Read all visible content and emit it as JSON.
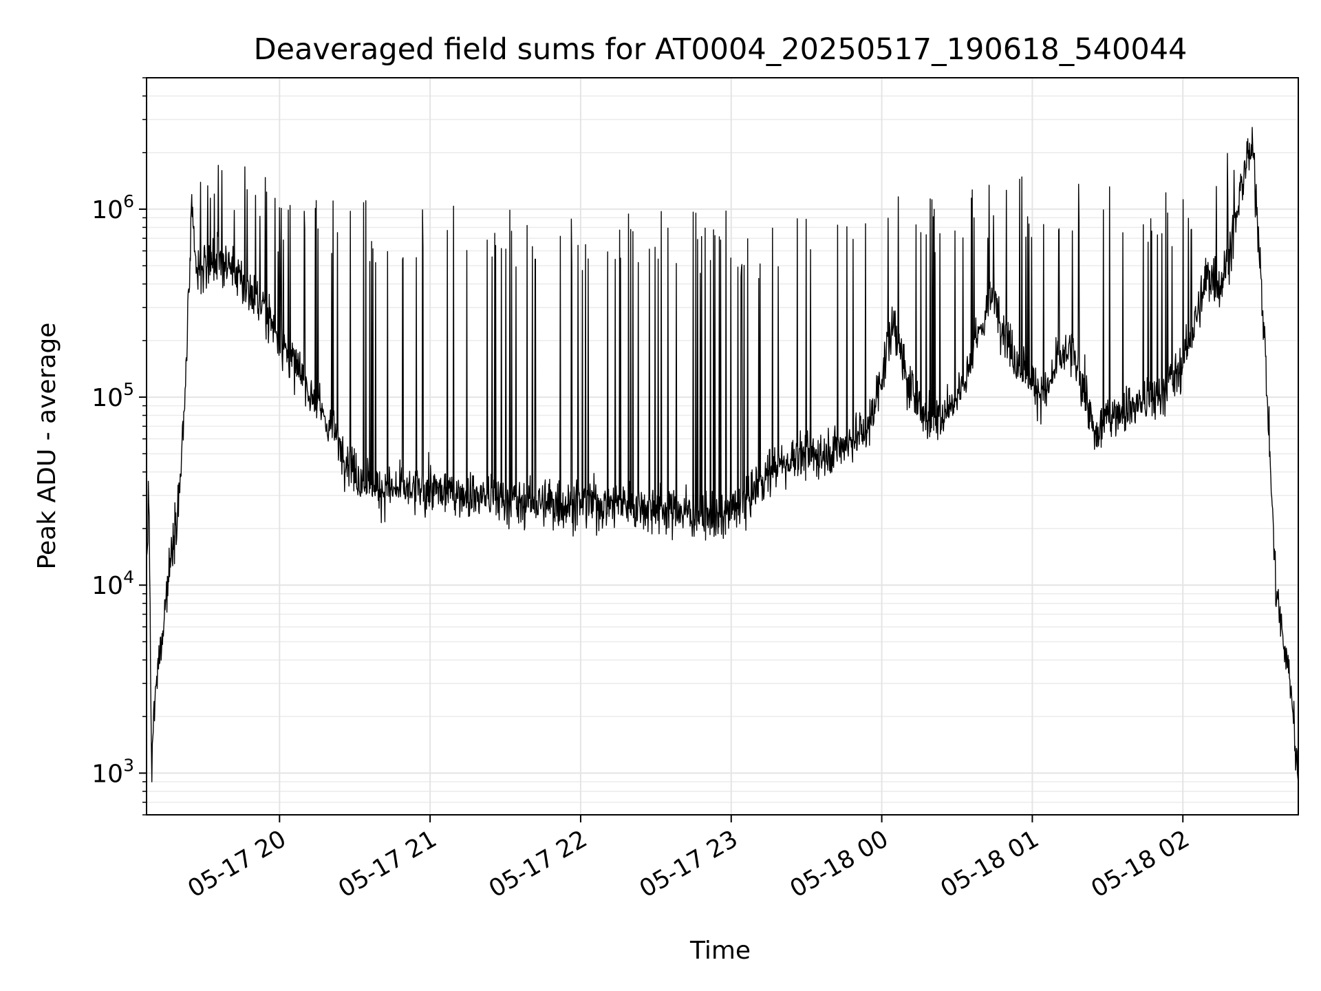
{
  "chart_data": {
    "type": "line",
    "title": "Deaveraged field sums for AT0004_20250517_190618_540044",
    "xlabel": "Time",
    "ylabel": "Peak ADU - average",
    "y_scale": "log",
    "ylim": [
      600,
      5000000
    ],
    "xlim": [
      "2025-05-17 19:07",
      "2025-05-18 02:46"
    ],
    "grid": true,
    "minor_grid": true,
    "legend": "none",
    "line_color": "#000000",
    "x_ticks": [
      {
        "value": "2025-05-17 20:00",
        "label": "05-17 20"
      },
      {
        "value": "2025-05-17 21:00",
        "label": "05-17 21"
      },
      {
        "value": "2025-05-17 22:00",
        "label": "05-17 22"
      },
      {
        "value": "2025-05-17 23:00",
        "label": "05-17 23"
      },
      {
        "value": "2025-05-18 00:00",
        "label": "05-18 00"
      },
      {
        "value": "2025-05-18 01:00",
        "label": "05-18 01"
      },
      {
        "value": "2025-05-18 02:00",
        "label": "05-18 02"
      }
    ],
    "y_ticks": [
      {
        "value": 1000,
        "base": "10",
        "exp": "3"
      },
      {
        "value": 10000,
        "base": "10",
        "exp": "4"
      },
      {
        "value": 100000,
        "base": "10",
        "exp": "5"
      },
      {
        "value": 1000000,
        "base": "10",
        "exp": "6"
      }
    ],
    "baseline_series": {
      "name": "",
      "points": [
        [
          "2025-05-17 19:07",
          13000
        ],
        [
          "2025-05-17 19:08",
          30000
        ],
        [
          "2025-05-17 19:09",
          900
        ],
        [
          "2025-05-17 19:10",
          2200
        ],
        [
          "2025-05-17 19:12",
          4000
        ],
        [
          "2025-05-17 19:14",
          7000
        ],
        [
          "2025-05-17 19:16",
          12000
        ],
        [
          "2025-05-17 19:18",
          20000
        ],
        [
          "2025-05-17 19:20",
          30000
        ],
        [
          "2025-05-17 19:22",
          80000
        ],
        [
          "2025-05-17 19:24",
          400000
        ],
        [
          "2025-05-17 19:25",
          900000
        ],
        [
          "2025-05-17 19:27",
          450000
        ],
        [
          "2025-05-17 19:30",
          500000
        ],
        [
          "2025-05-17 19:35",
          550000
        ],
        [
          "2025-05-17 19:40",
          500000
        ],
        [
          "2025-05-17 19:45",
          400000
        ],
        [
          "2025-05-17 19:50",
          350000
        ],
        [
          "2025-05-17 19:55",
          280000
        ],
        [
          "2025-05-17 20:00",
          200000
        ],
        [
          "2025-05-17 20:10",
          120000
        ],
        [
          "2025-05-17 20:20",
          70000
        ],
        [
          "2025-05-17 20:30",
          40000
        ],
        [
          "2025-05-17 20:40",
          32000
        ],
        [
          "2025-05-17 21:00",
          32000
        ],
        [
          "2025-05-17 21:20",
          30000
        ],
        [
          "2025-05-17 21:40",
          27000
        ],
        [
          "2025-05-17 22:00",
          27000
        ],
        [
          "2025-05-17 22:20",
          27000
        ],
        [
          "2025-05-17 22:40",
          25000
        ],
        [
          "2025-05-17 22:55",
          22000
        ],
        [
          "2025-05-17 23:05",
          28000
        ],
        [
          "2025-05-17 23:15",
          40000
        ],
        [
          "2025-05-17 23:25",
          48000
        ],
        [
          "2025-05-17 23:35",
          50000
        ],
        [
          "2025-05-17 23:45",
          55000
        ],
        [
          "2025-05-17 23:55",
          70000
        ],
        [
          "2025-05-18 00:05",
          250000
        ],
        [
          "2025-05-18 00:10",
          120000
        ],
        [
          "2025-05-18 00:20",
          70000
        ],
        [
          "2025-05-18 00:30",
          100000
        ],
        [
          "2025-05-18 00:35",
          150000
        ],
        [
          "2025-05-18 00:40",
          250000
        ],
        [
          "2025-05-18 00:45",
          350000
        ],
        [
          "2025-05-18 00:50",
          200000
        ],
        [
          "2025-05-18 00:55",
          150000
        ],
        [
          "2025-05-18 01:00",
          120000
        ],
        [
          "2025-05-18 01:05",
          100000
        ],
        [
          "2025-05-18 01:10",
          150000
        ],
        [
          "2025-05-18 01:15",
          180000
        ],
        [
          "2025-05-18 01:20",
          120000
        ],
        [
          "2025-05-18 01:25",
          60000
        ],
        [
          "2025-05-18 01:30",
          80000
        ],
        [
          "2025-05-18 01:40",
          90000
        ],
        [
          "2025-05-18 01:50",
          100000
        ],
        [
          "2025-05-18 02:00",
          150000
        ],
        [
          "2025-05-18 02:05",
          250000
        ],
        [
          "2025-05-18 02:10",
          450000
        ],
        [
          "2025-05-18 02:15",
          400000
        ],
        [
          "2025-05-18 02:20",
          700000
        ],
        [
          "2025-05-18 02:25",
          1800000
        ],
        [
          "2025-05-18 02:28",
          2000000
        ],
        [
          "2025-05-18 02:31",
          500000
        ],
        [
          "2025-05-18 02:33",
          150000
        ],
        [
          "2025-05-18 02:35",
          40000
        ],
        [
          "2025-05-18 02:37",
          10000
        ],
        [
          "2025-05-18 02:40",
          5000
        ],
        [
          "2025-05-18 02:43",
          3000
        ],
        [
          "2025-05-18 02:46",
          900
        ]
      ]
    },
    "spike_peak_series": {
      "name": "",
      "points": [
        [
          "2025-05-17 19:30",
          2400000
        ],
        [
          "2025-05-17 19:45",
          2100000
        ],
        [
          "2025-05-17 20:00",
          1300000
        ],
        [
          "2025-05-17 20:30",
          1150000
        ],
        [
          "2025-05-17 21:00",
          1100000
        ],
        [
          "2025-05-17 21:30",
          1100000
        ],
        [
          "2025-05-17 22:00",
          1050000
        ],
        [
          "2025-05-17 22:30",
          1100000
        ],
        [
          "2025-05-17 22:50",
          1000000
        ],
        [
          "2025-05-17 23:10",
          950000
        ],
        [
          "2025-05-17 23:30",
          1000000
        ],
        [
          "2025-05-17 23:50",
          1300000
        ],
        [
          "2025-05-18 00:10",
          1200000
        ],
        [
          "2025-05-18 00:30",
          1350000
        ],
        [
          "2025-05-18 00:50",
          1500000
        ],
        [
          "2025-05-18 01:10",
          1600000
        ],
        [
          "2025-05-18 01:30",
          1400000
        ],
        [
          "2025-05-18 01:50",
          1300000
        ],
        [
          "2025-05-18 02:10",
          1700000
        ],
        [
          "2025-05-18 02:25",
          3200000
        ]
      ]
    }
  }
}
